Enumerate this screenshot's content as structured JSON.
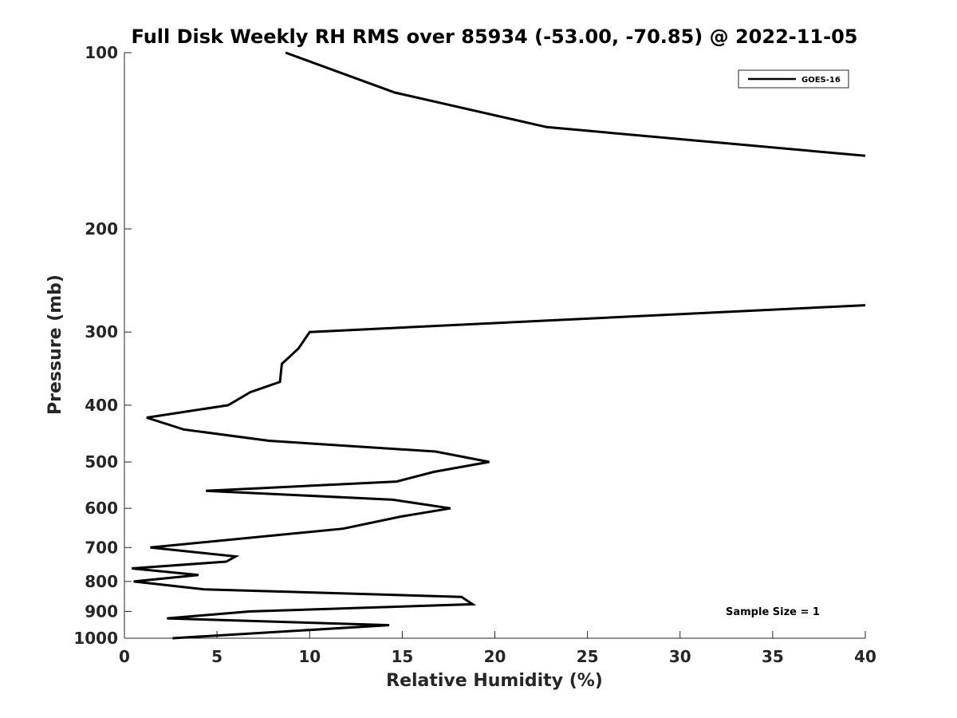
{
  "chart_data": {
    "type": "line",
    "title": "Full Disk Weekly RH RMS over 85934 (-53.00, -70.85) @ 2022-11-05",
    "xlabel": "Relative Humidity (%)",
    "ylabel": "Pressure (mb)",
    "xlim": [
      0,
      40
    ],
    "ylim": [
      100,
      1000
    ],
    "yscale": "log",
    "y_reversed": true,
    "xticks": [
      0,
      5,
      10,
      15,
      20,
      25,
      30,
      35,
      40
    ],
    "yticks": [
      100,
      200,
      300,
      400,
      500,
      600,
      700,
      800,
      900,
      1000
    ],
    "grid": false,
    "legend_position": "top-right",
    "annotation": "Sample Size = 1",
    "series": [
      {
        "name": "GOES-16",
        "color": "#000000",
        "points": [
          {
            "x": 2.6,
            "y": 1000
          },
          {
            "x": 14.3,
            "y": 950
          },
          {
            "x": 2.3,
            "y": 925
          },
          {
            "x": 6.8,
            "y": 900
          },
          {
            "x": 18.8,
            "y": 875
          },
          {
            "x": 18.2,
            "y": 850
          },
          {
            "x": 4.3,
            "y": 825
          },
          {
            "x": 0.5,
            "y": 800
          },
          {
            "x": 4.0,
            "y": 780
          },
          {
            "x": 0.4,
            "y": 760
          },
          {
            "x": 5.5,
            "y": 740
          },
          {
            "x": 6.0,
            "y": 725
          },
          {
            "x": 1.4,
            "y": 700
          },
          {
            "x": 11.8,
            "y": 650
          },
          {
            "x": 14.9,
            "y": 620
          },
          {
            "x": 17.6,
            "y": 600
          },
          {
            "x": 14.5,
            "y": 580
          },
          {
            "x": 4.4,
            "y": 560
          },
          {
            "x": 14.7,
            "y": 540
          },
          {
            "x": 16.7,
            "y": 520
          },
          {
            "x": 19.7,
            "y": 500
          },
          {
            "x": 16.8,
            "y": 480
          },
          {
            "x": 7.8,
            "y": 460
          },
          {
            "x": 3.2,
            "y": 440
          },
          {
            "x": 1.2,
            "y": 420
          },
          {
            "x": 5.6,
            "y": 400
          },
          {
            "x": 6.8,
            "y": 380
          },
          {
            "x": 8.4,
            "y": 365
          },
          {
            "x": 8.5,
            "y": 340
          },
          {
            "x": 9.4,
            "y": 320
          },
          {
            "x": 10.0,
            "y": 300
          },
          {
            "x": 40.0,
            "y": 270
          }
        ],
        "points_upper": [
          {
            "x": 40.0,
            "y": 150
          },
          {
            "x": 22.8,
            "y": 134
          },
          {
            "x": 14.6,
            "y": 117
          },
          {
            "x": 8.7,
            "y": 100
          }
        ]
      }
    ]
  }
}
